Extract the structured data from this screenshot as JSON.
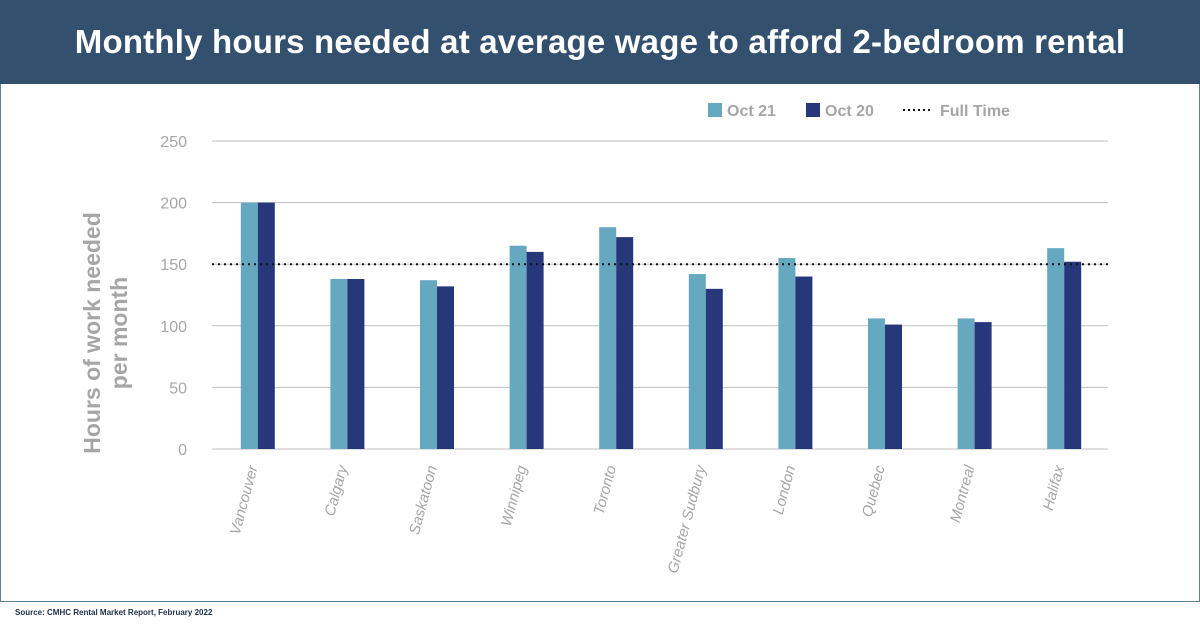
{
  "header": {
    "title": "Monthly hours needed at average wage to afford 2-bedroom rental"
  },
  "source": "Source: CMHC Rental Market Report, February 2022",
  "colors": {
    "header_bg": "#34506f",
    "oct21": "#66a8c0",
    "oct20": "#26377a",
    "axis_text": "#a6a6a6",
    "grid": "#bfbfbf"
  },
  "chart_data": {
    "type": "bar",
    "ylabel": "Hours of  work needed per month",
    "ylabel_lines": [
      "Hours of  work needed",
      "per month"
    ],
    "ylim": [
      0,
      250
    ],
    "yticks": [
      "0",
      "50",
      "100",
      "150",
      "200",
      "250"
    ],
    "grid": true,
    "legend_position": "top-right",
    "categories": [
      "Vancouver",
      "Calgary",
      "Saskatoon",
      "Winnipeg",
      "Toronto",
      "Greater Sudbury",
      "London",
      "Quebec",
      "Montreal",
      "Halifax"
    ],
    "series": [
      {
        "name": "Oct 21",
        "values": [
          200,
          138,
          137,
          165,
          180,
          142,
          155,
          106,
          106,
          163
        ]
      },
      {
        "name": "Oct 20",
        "values": [
          200,
          138,
          132,
          160,
          172,
          130,
          140,
          101,
          103,
          152
        ]
      }
    ],
    "reference_line": {
      "name": "Full Time",
      "value": 150,
      "style": "dotted"
    }
  }
}
